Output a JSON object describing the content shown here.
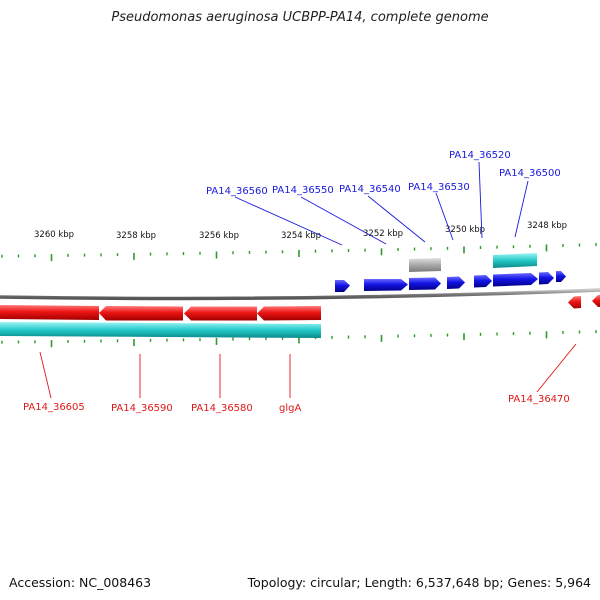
{
  "header": {
    "title": "Pseudomonas aeruginosa UCBPP-PA14, complete genome"
  },
  "footer": {
    "accession": "Accession: NC_008463",
    "topology": "Topology: circular; Length: 6,537,648 bp; Genes: 5,964"
  },
  "scale": {
    "ticks": [
      "3260 kbp",
      "3258 kbp",
      "3256 kbp",
      "3254 kbp",
      "3252 kbp",
      "3250 kbp",
      "3248 kbp"
    ]
  },
  "genes_forward": {
    "labels": [
      "PA14_36560",
      "PA14_36550",
      "PA14_36540",
      "PA14_36530",
      "PA14_36520",
      "PA14_36500"
    ],
    "color": "#1010dd"
  },
  "genes_reverse": {
    "labels": [
      "PA14_36605",
      "PA14_36590",
      "PA14_36580",
      "glgA",
      "PA14_36470"
    ],
    "color": "#e81010"
  },
  "colors": {
    "backbone": "#8a8a8a",
    "forward_gene": "#1010dd",
    "reverse_gene": "#e81010",
    "feature_band": "#2ecfcf",
    "tick": "#2e9a2e",
    "gray_feature": "#aaaaaa"
  }
}
